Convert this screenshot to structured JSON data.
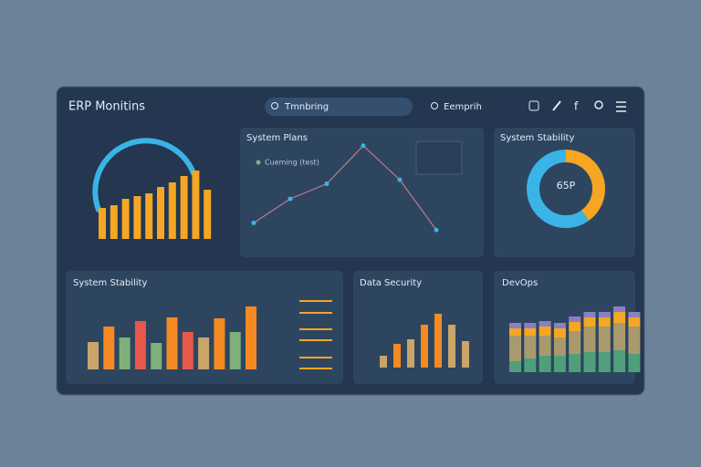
{
  "header": {
    "title": "ERP Monitins",
    "search": "Tmnbring",
    "search2": "Eemprih"
  },
  "panels": [
    {
      "values": [
        34,
        37,
        44,
        47,
        50,
        57,
        62,
        69,
        75,
        54
      ]
    },
    {
      "title": "System Plans",
      "legend": "Cueming (test)",
      "values": [
        16,
        40,
        55,
        93,
        59,
        9
      ]
    },
    {
      "title": "System Stability",
      "center": "65P",
      "values": [
        40,
        60
      ]
    },
    {
      "title": "System Stability",
      "values": [
        30,
        47,
        35,
        53,
        29,
        57,
        41,
        35,
        56,
        41,
        69
      ]
    },
    {
      "title": "Data Security",
      "values": [
        13,
        26,
        31,
        47,
        59,
        47,
        29
      ]
    },
    {
      "title": "DevOps",
      "series": [
        {
          "color": "#4fa07a",
          "values": [
            12,
            15,
            18,
            18,
            20,
            22,
            22,
            24,
            20
          ]
        },
        {
          "color": "#a99a6e",
          "values": [
            28,
            25,
            22,
            20,
            25,
            28,
            28,
            30,
            30
          ]
        },
        {
          "color": "#f5a623",
          "values": [
            8,
            8,
            10,
            10,
            10,
            10,
            10,
            12,
            10
          ]
        },
        {
          "color": "#8a7fc0",
          "values": [
            6,
            6,
            6,
            6,
            6,
            6,
            6,
            6,
            6
          ]
        }
      ]
    }
  ]
}
